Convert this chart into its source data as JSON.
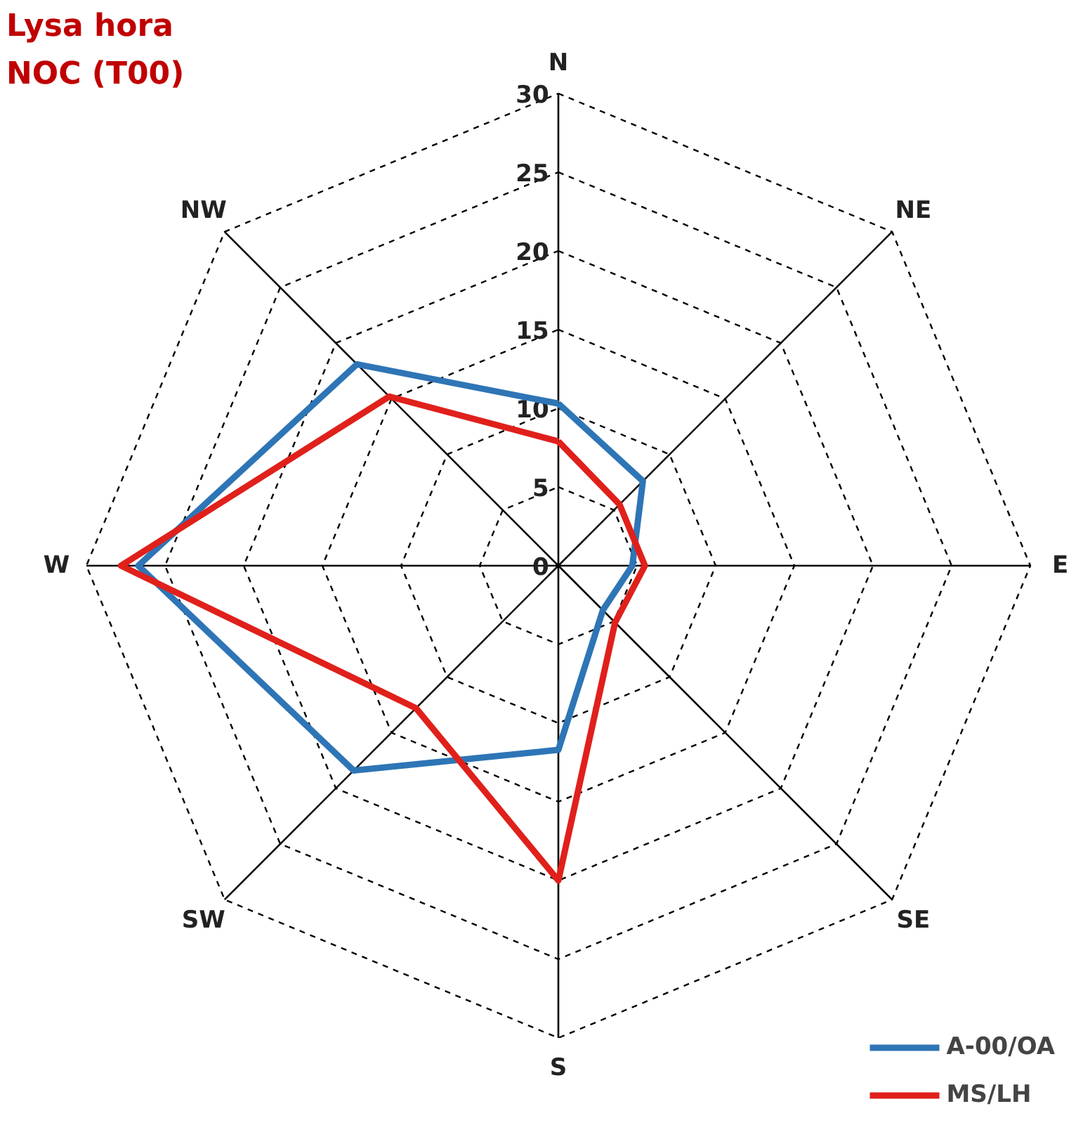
{
  "chart_data": {
    "type": "radar",
    "title": "Lysa hora",
    "subtitle": "NOC (T00)",
    "categories": [
      "N",
      "NE",
      "E",
      "SE",
      "S",
      "SW",
      "W",
      "NW"
    ],
    "ylim": [
      0,
      30
    ],
    "yticks": [
      0,
      5,
      10,
      15,
      20,
      25,
      30
    ],
    "grid": true,
    "legend": "bottom right",
    "series": [
      {
        "name": "A-00/OA",
        "color": "#2e75b6",
        "values": [
          10.3,
          7.6,
          4.7,
          4.0,
          11.7,
          18.4,
          26.7,
          18.1
        ]
      },
      {
        "name": "MS/LH",
        "color": "#e0201b",
        "values": [
          7.9,
          5.5,
          5.5,
          5.1,
          20,
          12.8,
          27.8,
          15.2
        ]
      }
    ]
  }
}
